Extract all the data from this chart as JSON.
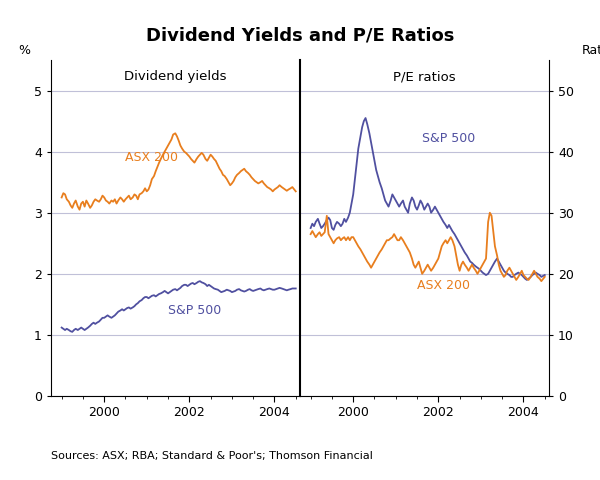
{
  "title": "Dividend Yields and P/E Ratios",
  "source_text": "Sources: ASX; RBA; Standard & Poor's; Thomson Financial",
  "left_label": "Dividend yields",
  "right_label": "P/E ratios",
  "left_ylabel": "%",
  "right_ylabel": "Ratio",
  "left_ylim": [
    0,
    5.5
  ],
  "right_ylim": [
    0,
    55
  ],
  "left_yticks": [
    0,
    1,
    2,
    3,
    4,
    5
  ],
  "right_yticks": [
    0,
    10,
    20,
    30,
    40,
    50
  ],
  "orange_color": "#E87E1E",
  "blue_color": "#5050A0",
  "background_color": "#FFFFFF",
  "grid_color": "#C0C0D8",
  "div_asx200_x": [
    1999.0,
    1999.04,
    1999.08,
    1999.12,
    1999.17,
    1999.21,
    1999.25,
    1999.29,
    1999.33,
    1999.38,
    1999.42,
    1999.46,
    1999.5,
    1999.54,
    1999.58,
    1999.62,
    1999.67,
    1999.71,
    1999.75,
    1999.79,
    1999.83,
    1999.88,
    1999.92,
    1999.96,
    2000.0,
    2000.04,
    2000.08,
    2000.12,
    2000.17,
    2000.21,
    2000.25,
    2000.29,
    2000.33,
    2000.38,
    2000.42,
    2000.46,
    2000.5,
    2000.54,
    2000.58,
    2000.62,
    2000.67,
    2000.71,
    2000.75,
    2000.79,
    2000.83,
    2000.88,
    2000.92,
    2000.96,
    2001.0,
    2001.04,
    2001.08,
    2001.12,
    2001.17,
    2001.21,
    2001.25,
    2001.29,
    2001.33,
    2001.38,
    2001.42,
    2001.46,
    2001.5,
    2001.54,
    2001.58,
    2001.62,
    2001.67,
    2001.71,
    2001.75,
    2001.79,
    2001.83,
    2001.88,
    2001.92,
    2001.96,
    2002.0,
    2002.04,
    2002.08,
    2002.12,
    2002.17,
    2002.21,
    2002.25,
    2002.29,
    2002.33,
    2002.38,
    2002.42,
    2002.46,
    2002.5,
    2002.54,
    2002.58,
    2002.62,
    2002.67,
    2002.71,
    2002.75,
    2002.79,
    2002.83,
    2002.88,
    2002.92,
    2002.96,
    2003.0,
    2003.04,
    2003.08,
    2003.12,
    2003.17,
    2003.21,
    2003.25,
    2003.29,
    2003.33,
    2003.38,
    2003.42,
    2003.46,
    2003.5,
    2003.54,
    2003.58,
    2003.62,
    2003.67,
    2003.71,
    2003.75,
    2003.79,
    2003.83,
    2003.88,
    2003.92,
    2003.96,
    2004.0,
    2004.04,
    2004.08,
    2004.12,
    2004.17,
    2004.21,
    2004.25,
    2004.29,
    2004.33,
    2004.38,
    2004.42,
    2004.5
  ],
  "div_asx200_y": [
    3.25,
    3.32,
    3.3,
    3.22,
    3.18,
    3.12,
    3.08,
    3.15,
    3.2,
    3.1,
    3.05,
    3.15,
    3.18,
    3.1,
    3.2,
    3.15,
    3.08,
    3.12,
    3.18,
    3.22,
    3.2,
    3.18,
    3.22,
    3.28,
    3.25,
    3.2,
    3.18,
    3.15,
    3.2,
    3.18,
    3.22,
    3.15,
    3.2,
    3.25,
    3.22,
    3.18,
    3.22,
    3.25,
    3.28,
    3.22,
    3.25,
    3.3,
    3.28,
    3.22,
    3.3,
    3.32,
    3.35,
    3.4,
    3.35,
    3.38,
    3.45,
    3.55,
    3.6,
    3.68,
    3.75,
    3.82,
    3.88,
    3.95,
    4.0,
    4.05,
    4.1,
    4.15,
    4.2,
    4.28,
    4.3,
    4.25,
    4.18,
    4.1,
    4.05,
    4.0,
    3.98,
    3.95,
    3.92,
    3.88,
    3.85,
    3.82,
    3.88,
    3.92,
    3.95,
    3.98,
    3.95,
    3.88,
    3.85,
    3.9,
    3.95,
    3.92,
    3.88,
    3.85,
    3.78,
    3.72,
    3.68,
    3.62,
    3.6,
    3.55,
    3.5,
    3.45,
    3.48,
    3.52,
    3.58,
    3.62,
    3.65,
    3.68,
    3.7,
    3.72,
    3.68,
    3.65,
    3.62,
    3.58,
    3.55,
    3.52,
    3.5,
    3.48,
    3.5,
    3.52,
    3.48,
    3.45,
    3.42,
    3.4,
    3.38,
    3.35,
    3.38,
    3.4,
    3.42,
    3.45,
    3.42,
    3.4,
    3.38,
    3.36,
    3.38,
    3.4,
    3.42,
    3.35
  ],
  "div_sp500_x": [
    1999.0,
    1999.04,
    1999.08,
    1999.12,
    1999.17,
    1999.21,
    1999.25,
    1999.29,
    1999.33,
    1999.38,
    1999.42,
    1999.46,
    1999.5,
    1999.54,
    1999.58,
    1999.62,
    1999.67,
    1999.71,
    1999.75,
    1999.79,
    1999.83,
    1999.88,
    1999.92,
    1999.96,
    2000.0,
    2000.04,
    2000.08,
    2000.12,
    2000.17,
    2000.21,
    2000.25,
    2000.29,
    2000.33,
    2000.38,
    2000.42,
    2000.46,
    2000.5,
    2000.54,
    2000.58,
    2000.62,
    2000.67,
    2000.71,
    2000.75,
    2000.79,
    2000.83,
    2000.88,
    2000.92,
    2000.96,
    2001.0,
    2001.04,
    2001.08,
    2001.12,
    2001.17,
    2001.21,
    2001.25,
    2001.29,
    2001.33,
    2001.38,
    2001.42,
    2001.46,
    2001.5,
    2001.54,
    2001.58,
    2001.62,
    2001.67,
    2001.71,
    2001.75,
    2001.79,
    2001.83,
    2001.88,
    2001.92,
    2001.96,
    2002.0,
    2002.04,
    2002.08,
    2002.12,
    2002.17,
    2002.21,
    2002.25,
    2002.29,
    2002.33,
    2002.38,
    2002.42,
    2002.46,
    2002.5,
    2002.54,
    2002.58,
    2002.62,
    2002.67,
    2002.71,
    2002.75,
    2002.79,
    2002.83,
    2002.88,
    2002.92,
    2002.96,
    2003.0,
    2003.04,
    2003.08,
    2003.12,
    2003.17,
    2003.21,
    2003.25,
    2003.29,
    2003.33,
    2003.38,
    2003.42,
    2003.46,
    2003.5,
    2003.54,
    2003.58,
    2003.62,
    2003.67,
    2003.71,
    2003.75,
    2003.79,
    2003.83,
    2003.88,
    2003.92,
    2003.96,
    2004.0,
    2004.04,
    2004.08,
    2004.12,
    2004.17,
    2004.21,
    2004.25,
    2004.29,
    2004.33,
    2004.38,
    2004.42,
    2004.5
  ],
  "div_sp500_y": [
    1.12,
    1.1,
    1.08,
    1.1,
    1.08,
    1.06,
    1.05,
    1.08,
    1.1,
    1.08,
    1.1,
    1.12,
    1.1,
    1.08,
    1.1,
    1.12,
    1.15,
    1.18,
    1.2,
    1.18,
    1.2,
    1.22,
    1.25,
    1.28,
    1.28,
    1.3,
    1.32,
    1.3,
    1.28,
    1.3,
    1.32,
    1.35,
    1.38,
    1.4,
    1.42,
    1.4,
    1.42,
    1.44,
    1.45,
    1.43,
    1.45,
    1.47,
    1.5,
    1.52,
    1.55,
    1.57,
    1.6,
    1.62,
    1.62,
    1.6,
    1.62,
    1.64,
    1.65,
    1.63,
    1.65,
    1.67,
    1.68,
    1.7,
    1.72,
    1.7,
    1.68,
    1.7,
    1.72,
    1.74,
    1.75,
    1.73,
    1.75,
    1.77,
    1.8,
    1.82,
    1.82,
    1.8,
    1.82,
    1.84,
    1.85,
    1.83,
    1.85,
    1.87,
    1.88,
    1.86,
    1.85,
    1.83,
    1.8,
    1.82,
    1.8,
    1.78,
    1.76,
    1.75,
    1.74,
    1.72,
    1.7,
    1.71,
    1.72,
    1.74,
    1.73,
    1.72,
    1.7,
    1.71,
    1.72,
    1.74,
    1.75,
    1.73,
    1.72,
    1.71,
    1.72,
    1.74,
    1.75,
    1.73,
    1.72,
    1.73,
    1.74,
    1.75,
    1.76,
    1.74,
    1.73,
    1.74,
    1.75,
    1.76,
    1.75,
    1.74,
    1.74,
    1.75,
    1.76,
    1.77,
    1.76,
    1.75,
    1.74,
    1.73,
    1.74,
    1.75,
    1.76,
    1.76
  ],
  "pe_sp500_x": [
    1999.0,
    1999.04,
    1999.08,
    1999.12,
    1999.17,
    1999.21,
    1999.25,
    1999.29,
    1999.33,
    1999.38,
    1999.42,
    1999.46,
    1999.5,
    1999.54,
    1999.58,
    1999.62,
    1999.67,
    1999.71,
    1999.75,
    1999.79,
    1999.83,
    1999.88,
    1999.92,
    1999.96,
    2000.0,
    2000.04,
    2000.08,
    2000.12,
    2000.17,
    2000.21,
    2000.25,
    2000.29,
    2000.33,
    2000.38,
    2000.42,
    2000.46,
    2000.5,
    2000.54,
    2000.58,
    2000.62,
    2000.67,
    2000.71,
    2000.75,
    2000.79,
    2000.83,
    2000.88,
    2000.92,
    2000.96,
    2001.0,
    2001.04,
    2001.08,
    2001.12,
    2001.17,
    2001.21,
    2001.25,
    2001.29,
    2001.33,
    2001.38,
    2001.42,
    2001.46,
    2001.5,
    2001.54,
    2001.58,
    2001.62,
    2001.67,
    2001.71,
    2001.75,
    2001.79,
    2001.83,
    2001.88,
    2001.92,
    2001.96,
    2002.0,
    2002.04,
    2002.08,
    2002.12,
    2002.17,
    2002.21,
    2002.25,
    2002.29,
    2002.33,
    2002.38,
    2002.42,
    2002.46,
    2002.5,
    2002.54,
    2002.58,
    2002.62,
    2002.67,
    2002.71,
    2002.75,
    2002.79,
    2002.83,
    2002.88,
    2002.92,
    2002.96,
    2003.0,
    2003.04,
    2003.08,
    2003.12,
    2003.17,
    2003.21,
    2003.25,
    2003.29,
    2003.33,
    2003.38,
    2003.42,
    2003.46,
    2003.5,
    2003.54,
    2003.58,
    2003.62,
    2003.67,
    2003.71,
    2003.75,
    2003.79,
    2003.83,
    2003.88,
    2003.92,
    2003.96,
    2004.0,
    2004.04,
    2004.08,
    2004.12,
    2004.17,
    2004.21,
    2004.25,
    2004.29,
    2004.33,
    2004.38,
    2004.42,
    2004.5
  ],
  "pe_sp500_y": [
    27.5,
    28.2,
    27.8,
    28.5,
    29.0,
    28.2,
    27.5,
    27.8,
    28.2,
    28.8,
    29.2,
    28.8,
    27.5,
    27.2,
    28.0,
    28.5,
    28.2,
    27.8,
    28.2,
    29.0,
    28.5,
    29.2,
    30.0,
    31.5,
    33.0,
    35.5,
    38.0,
    40.5,
    42.5,
    44.0,
    45.0,
    45.5,
    44.5,
    43.0,
    41.5,
    40.0,
    38.5,
    37.0,
    36.0,
    35.0,
    34.0,
    33.0,
    32.0,
    31.5,
    31.0,
    32.0,
    33.0,
    32.5,
    32.0,
    31.5,
    31.0,
    31.5,
    32.0,
    31.0,
    30.5,
    30.0,
    31.5,
    32.5,
    32.0,
    31.0,
    30.5,
    31.2,
    32.0,
    31.5,
    30.5,
    31.0,
    31.5,
    31.0,
    30.0,
    30.5,
    31.0,
    30.5,
    30.0,
    29.5,
    29.0,
    28.5,
    28.0,
    27.5,
    28.0,
    27.5,
    27.0,
    26.5,
    26.0,
    25.5,
    25.0,
    24.5,
    24.0,
    23.5,
    23.0,
    22.5,
    22.0,
    21.8,
    21.5,
    21.2,
    21.0,
    20.8,
    20.5,
    20.2,
    20.0,
    19.8,
    20.0,
    20.5,
    21.0,
    21.5,
    22.0,
    22.5,
    22.0,
    21.5,
    21.0,
    20.5,
    20.2,
    20.0,
    19.8,
    19.5,
    19.5,
    19.8,
    20.0,
    20.2,
    20.0,
    19.8,
    19.5,
    19.2,
    19.0,
    19.2,
    19.5,
    19.8,
    20.0,
    20.2,
    20.0,
    19.8,
    19.5,
    19.8
  ],
  "pe_asx200_x": [
    1999.0,
    1999.04,
    1999.08,
    1999.12,
    1999.17,
    1999.21,
    1999.25,
    1999.29,
    1999.33,
    1999.38,
    1999.42,
    1999.46,
    1999.5,
    1999.54,
    1999.58,
    1999.62,
    1999.67,
    1999.71,
    1999.75,
    1999.79,
    1999.83,
    1999.88,
    1999.92,
    1999.96,
    2000.0,
    2000.04,
    2000.08,
    2000.12,
    2000.17,
    2000.21,
    2000.25,
    2000.29,
    2000.33,
    2000.38,
    2000.42,
    2000.46,
    2000.5,
    2000.54,
    2000.58,
    2000.62,
    2000.67,
    2000.71,
    2000.75,
    2000.79,
    2000.83,
    2000.88,
    2000.92,
    2000.96,
    2001.0,
    2001.04,
    2001.08,
    2001.12,
    2001.17,
    2001.21,
    2001.25,
    2001.29,
    2001.33,
    2001.38,
    2001.42,
    2001.46,
    2001.5,
    2001.54,
    2001.58,
    2001.62,
    2001.67,
    2001.71,
    2001.75,
    2001.79,
    2001.83,
    2001.88,
    2001.92,
    2001.96,
    2002.0,
    2002.04,
    2002.08,
    2002.12,
    2002.17,
    2002.21,
    2002.25,
    2002.29,
    2002.33,
    2002.38,
    2002.42,
    2002.46,
    2002.5,
    2002.54,
    2002.58,
    2002.62,
    2002.67,
    2002.71,
    2002.75,
    2002.79,
    2002.83,
    2002.88,
    2002.92,
    2002.96,
    2003.0,
    2003.04,
    2003.08,
    2003.12,
    2003.17,
    2003.21,
    2003.25,
    2003.29,
    2003.33,
    2003.38,
    2003.42,
    2003.46,
    2003.5,
    2003.54,
    2003.58,
    2003.62,
    2003.67,
    2003.71,
    2003.75,
    2003.79,
    2003.83,
    2003.88,
    2003.92,
    2003.96,
    2004.0,
    2004.04,
    2004.08,
    2004.12,
    2004.17,
    2004.21,
    2004.25,
    2004.29,
    2004.33,
    2004.38,
    2004.42,
    2004.5
  ],
  "pe_asx200_y": [
    26.5,
    27.0,
    26.5,
    26.0,
    26.5,
    26.8,
    26.2,
    26.5,
    26.8,
    29.5,
    26.5,
    26.0,
    25.5,
    25.0,
    25.5,
    25.8,
    26.0,
    25.5,
    25.8,
    26.0,
    25.5,
    26.0,
    25.5,
    26.0,
    26.0,
    25.5,
    25.0,
    24.5,
    24.0,
    23.5,
    23.0,
    22.5,
    22.0,
    21.5,
    21.0,
    21.5,
    22.0,
    22.5,
    23.0,
    23.5,
    24.0,
    24.5,
    25.0,
    25.5,
    25.5,
    25.8,
    26.0,
    26.5,
    26.0,
    25.5,
    25.5,
    26.0,
    25.5,
    25.0,
    24.5,
    24.0,
    23.5,
    22.5,
    21.5,
    21.0,
    21.5,
    22.0,
    21.0,
    20.0,
    20.5,
    21.0,
    21.5,
    21.0,
    20.5,
    21.0,
    21.5,
    22.0,
    22.5,
    23.5,
    24.5,
    25.0,
    25.5,
    25.0,
    25.5,
    26.0,
    25.5,
    24.5,
    23.0,
    21.5,
    20.5,
    21.5,
    22.0,
    21.5,
    21.0,
    20.5,
    21.0,
    21.5,
    21.0,
    20.5,
    20.0,
    20.5,
    21.0,
    21.5,
    22.0,
    22.5,
    28.5,
    30.0,
    29.5,
    27.0,
    24.5,
    23.0,
    21.5,
    20.5,
    20.0,
    19.5,
    19.8,
    20.5,
    21.0,
    20.5,
    20.0,
    19.5,
    19.0,
    19.5,
    20.0,
    20.5,
    19.8,
    19.5,
    19.2,
    19.0,
    19.5,
    20.0,
    20.5,
    20.0,
    19.5,
    19.2,
    18.8,
    19.5
  ]
}
